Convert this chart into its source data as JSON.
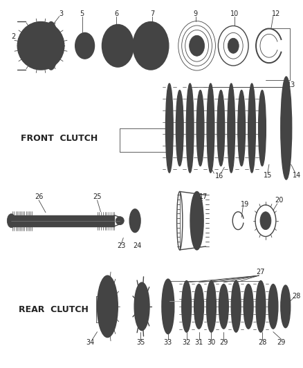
{
  "bg_color": "#ffffff",
  "line_color": "#444444",
  "text_color": "#222222",
  "front_clutch_label": "FRONT  CLUTCH",
  "rear_clutch_label": "REAR  CLUTCH",
  "figsize": [
    4.38,
    5.33
  ],
  "dpi": 100
}
